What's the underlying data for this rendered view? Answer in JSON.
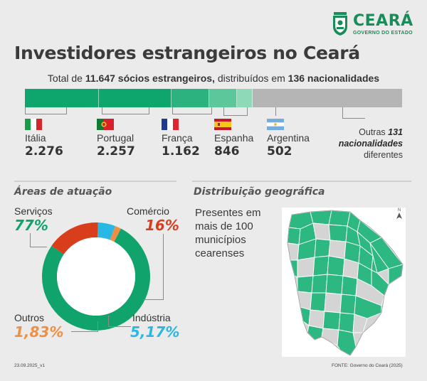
{
  "brand": {
    "name": "CEARÁ",
    "subtitle": "GOVERNO DO ESTADO"
  },
  "title": "Investidores estrangeiros no Ceará",
  "subtitle": {
    "prefix": "Total de ",
    "total_bold": "11.647 sócios estrangeiros,",
    "middle": " distribuídos em ",
    "nationalities_bold": "136 nacionalidades"
  },
  "colors": {
    "green_dark": "#0fa66e",
    "green_mid": "#2bb27f",
    "green_light": "#5cc79b",
    "green_pale": "#8dd9b8",
    "grey_bar": "#b5b5b5",
    "servicos": "#11a36c",
    "comercio": "#d93e1c",
    "industria": "#29b8e3",
    "outros": "#ef8f43"
  },
  "chart_data": [
    {
      "type": "bar",
      "orientation": "horizontal-stacked",
      "title": "Total de 11.647 sócios estrangeiros, distribuídos em 136 nacionalidades",
      "categories": [
        "Itália",
        "Portugal",
        "França",
        "Espanha",
        "Argentina",
        "Outras 131 nacionalidades diferentes"
      ],
      "values": [
        2276,
        2257,
        1162,
        846,
        502,
        4604
      ],
      "value_labels": [
        "2.276",
        "2.257",
        "1.162",
        "846",
        "502",
        ""
      ],
      "flags": [
        "italy-flag-icon",
        "portugal-flag-icon",
        "france-flag-icon",
        "spain-flag-icon",
        "argentina-flag-icon",
        ""
      ],
      "others_label": {
        "prefix": "Outras ",
        "bold": "131 nacionalidades",
        "suffix": " diferentes"
      }
    },
    {
      "type": "pie",
      "title": "Áreas de atuação",
      "categories": [
        "Serviços",
        "Comércio",
        "Indústria",
        "Outros"
      ],
      "values": [
        77,
        16,
        5.17,
        1.83
      ],
      "value_labels": [
        "77%",
        "16%",
        "5,17%",
        "1,83%"
      ],
      "donut": true
    }
  ],
  "geo": {
    "title": "Distribuição geográfica",
    "text": "Presentes em mais de 100 municípios cearenses",
    "north_label": "N"
  },
  "footer": {
    "version": "23.09.2025_v1",
    "source": "FONTE: Governo do Ceará (2025)"
  }
}
